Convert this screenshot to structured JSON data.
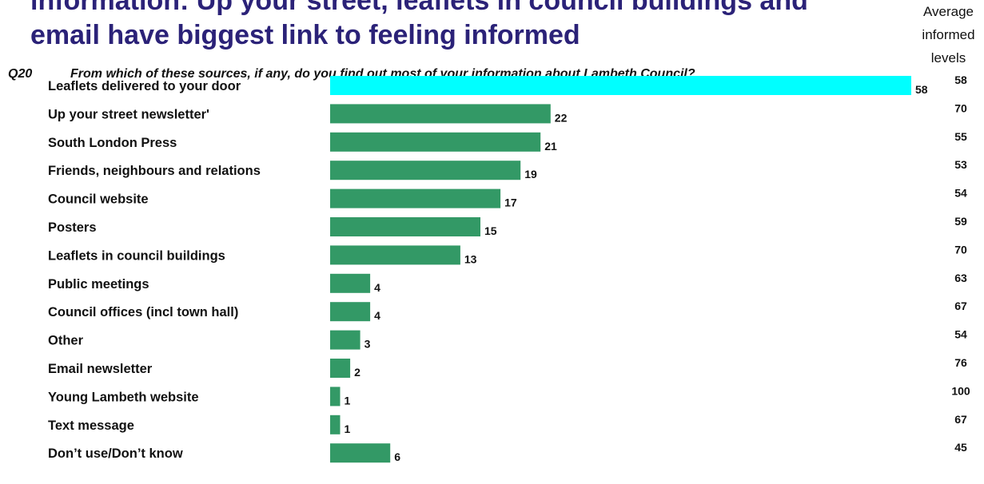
{
  "title_lines": [
    "information: Up your street, leaflets in council buildings and",
    "email have biggest link  to feeling informed"
  ],
  "question": {
    "number": "Q20",
    "text": "From which of these sources, if any, do you find out most of your information about Lambeth Council?"
  },
  "average_header": [
    "Average",
    "informed",
    "levels"
  ],
  "colors": {
    "title": "#2b2278",
    "bar": "#339966",
    "highlight_bar": "#00ffff"
  },
  "chart_data": {
    "type": "bar",
    "orientation": "horizontal",
    "title": "information: Up your street, leaflets in council buildings and email have biggest link  to feeling informed",
    "categories": [
      "Leaflets delivered to your door",
      "Up your street newsletter'",
      "South London Press",
      "Friends, neighbours and relations",
      "Council website",
      "Posters",
      "Leaflets in council buildings",
      "Public meetings",
      "Council offices (incl town hall)",
      "Other",
      "Email newsletter",
      "Young Lambeth website",
      "Text message",
      "Don’t use/Don’t know"
    ],
    "values": [
      58,
      22,
      21,
      19,
      17,
      15,
      13,
      4,
      4,
      3,
      2,
      1,
      1,
      6
    ],
    "value_labels": [
      "58",
      "22",
      "21",
      "19",
      "17",
      "15",
      "13",
      "4",
      "4",
      "3",
      "2",
      "1",
      "1",
      "6"
    ],
    "highlighted_index": 0,
    "average_informed_levels": [
      "58",
      "70",
      "55",
      "53",
      "54",
      "59",
      "70",
      "63",
      "67",
      "54",
      "76",
      "100",
      "67",
      "45"
    ],
    "xlim": [
      0,
      58
    ],
    "grid": false,
    "legend": "none"
  }
}
